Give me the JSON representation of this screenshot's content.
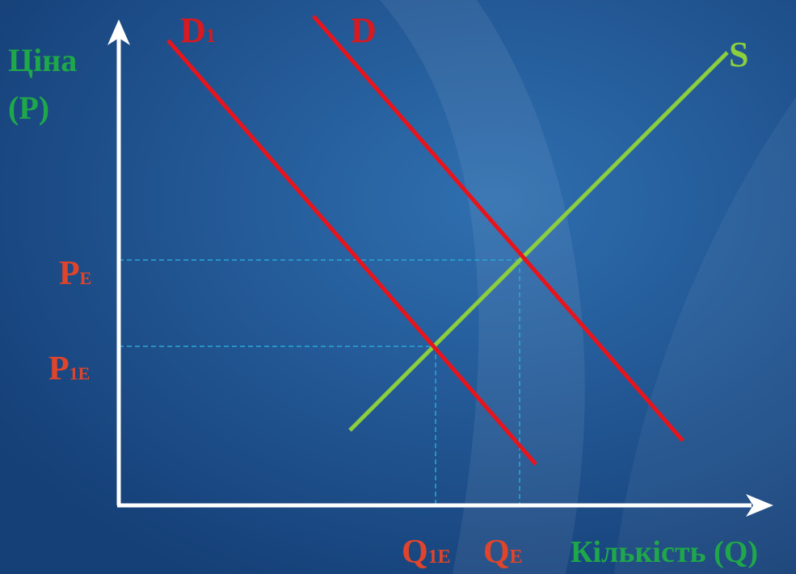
{
  "axis": {
    "y_label_line1": "Ціна",
    "y_label_line2": "(P)",
    "x_label": "Кількість (Q)"
  },
  "curves": {
    "demand_shifted": {
      "main": "D",
      "sub": "1"
    },
    "demand": "D",
    "supply": "S"
  },
  "prices": {
    "pe": {
      "main": "P",
      "sub": "E"
    },
    "p1e": {
      "main": "P",
      "sub": "1E"
    }
  },
  "quantities": {
    "q1e": {
      "main": "Q",
      "sub": "1E"
    },
    "qe": {
      "main": "Q",
      "sub": "E"
    }
  },
  "colors": {
    "background": "#184a86",
    "axis": "#ffffff",
    "demand": "#e8141c",
    "supply": "#8ccf3e",
    "guide": "#2aa7d6",
    "axis_label": "#1fa84a",
    "curve_label": "#d71920",
    "point_label": "#e0452b"
  }
}
